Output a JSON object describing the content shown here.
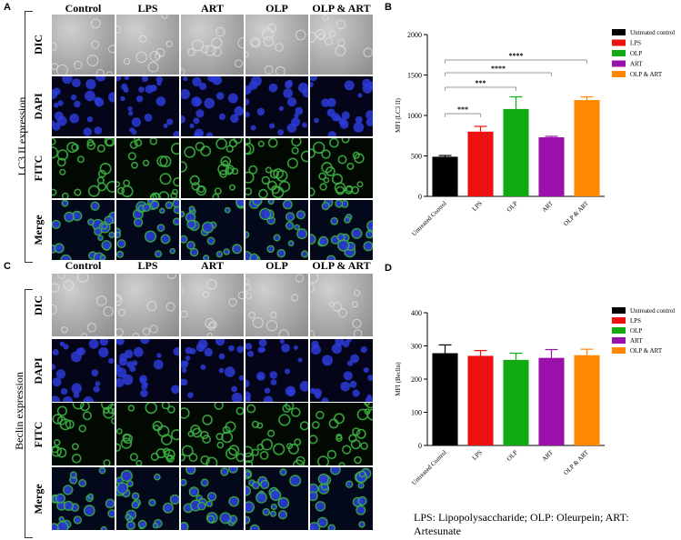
{
  "panels": {
    "a": {
      "letter": "A",
      "side_label": "LC3 II expression",
      "columns": [
        "Control",
        "LPS",
        "ART",
        "OLP",
        "OLP & ART"
      ],
      "rows": [
        "DIC",
        "DAPI",
        "FITC",
        "Merge"
      ]
    },
    "c": {
      "letter": "C",
      "side_label": "Beclin expression",
      "columns": [
        "Control",
        "LPS",
        "ART",
        "OLP",
        "OLP & ART"
      ],
      "rows": [
        "DIC",
        "DAPI",
        "FITC",
        "Merge"
      ]
    },
    "b": {
      "letter": "B"
    },
    "d": {
      "letter": "D"
    }
  },
  "colors": {
    "untreated": "#000000",
    "lps": "#ee1111",
    "olp": "#11aa11",
    "art": "#9911aa",
    "olp_art": "#ff8800",
    "dapi_cells": "#2b3bd6",
    "fitc_cells": "#3cb043"
  },
  "chart_data": [
    {
      "type": "bar",
      "panel": "B",
      "categories": [
        "Untreated Control",
        "LPS",
        "OLP",
        "ART",
        "OLP & ART"
      ],
      "values": [
        490,
        800,
        1080,
        730,
        1190
      ],
      "errors": [
        15,
        65,
        150,
        12,
        40
      ],
      "ylabel": "MFI (LC3 II)",
      "ylim": [
        0,
        2000
      ],
      "yticks": [
        0,
        500,
        1000,
        1500,
        2000
      ],
      "legend": [
        "Untreated control",
        "LPS",
        "OLP",
        "ART",
        "OLP & ART"
      ],
      "legend_position": "top-right",
      "significance": [
        {
          "from": "Untreated Control",
          "to": "LPS",
          "label": "***"
        },
        {
          "from": "Untreated Control",
          "to": "OLP",
          "label": "***"
        },
        {
          "from": "Untreated Control",
          "to": "ART",
          "label": "****"
        },
        {
          "from": "Untreated Control",
          "to": "OLP & ART",
          "label": "****"
        }
      ]
    },
    {
      "type": "bar",
      "panel": "D",
      "categories": [
        "Untreated Control",
        "LPS",
        "OLP",
        "ART",
        "OLP & ART"
      ],
      "values": [
        278,
        270,
        258,
        264,
        272
      ],
      "errors": [
        25,
        16,
        20,
        25,
        18
      ],
      "ylabel": "MFI (Beclin)",
      "ylim": [
        0,
        400
      ],
      "yticks": [
        0,
        100,
        200,
        300,
        400
      ],
      "legend": [
        "Untreated control",
        "LPS",
        "OLP",
        "ART",
        "OLP & ART"
      ],
      "legend_position": "top-right"
    }
  ],
  "caption": "LPS: Lipopolysaccharide; OLP: Oleurpein; ART: Artesunate"
}
